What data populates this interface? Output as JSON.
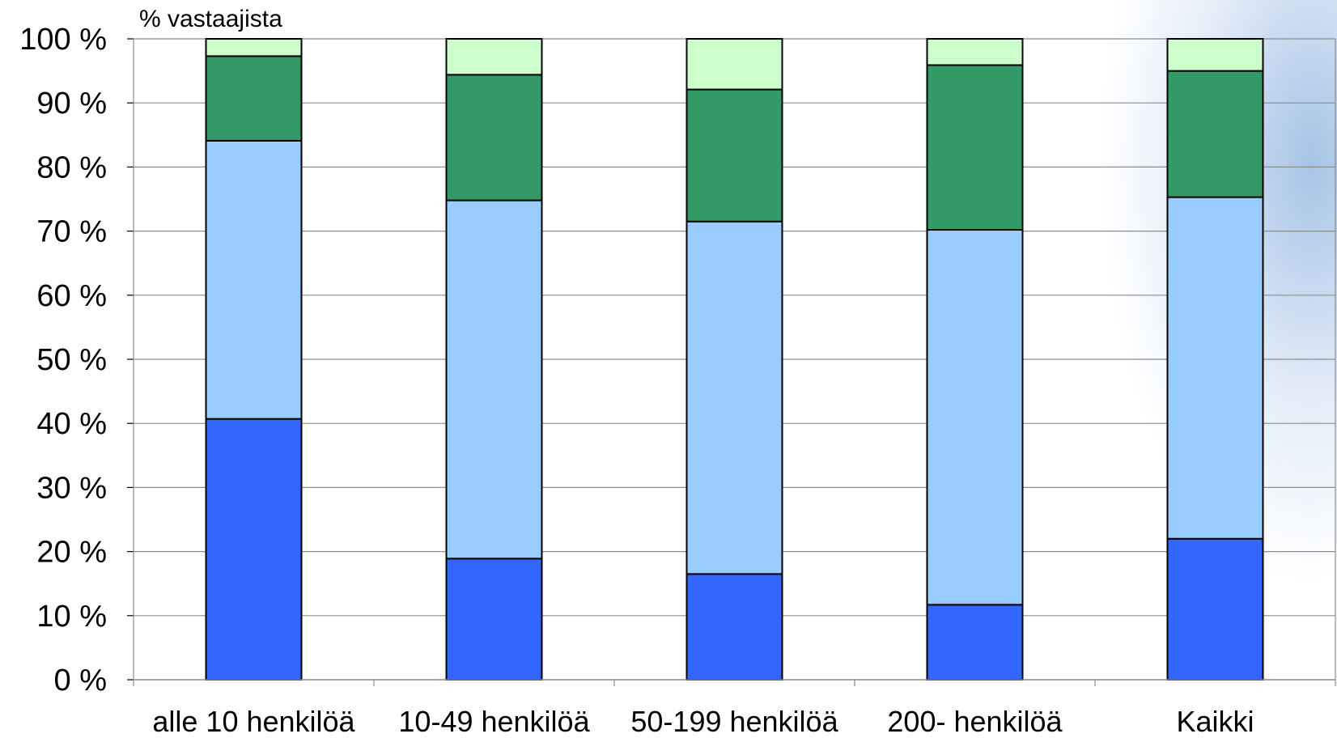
{
  "chart_data": {
    "type": "bar",
    "stacked": true,
    "ylabel": "% vastaajista",
    "ylim": [
      0,
      100
    ],
    "yticks": [
      "0 %",
      "10 %",
      "20 %",
      "30 %",
      "40 %",
      "50 %",
      "60 %",
      "70 %",
      "80 %",
      "90 %",
      "100 %"
    ],
    "categories": [
      "alle 10 henkilöä",
      "10-49 henkilöä",
      "50-199 henkilöä",
      "200- henkilöä",
      "Kaikki"
    ],
    "grid": true,
    "series": [
      {
        "color": "#3366ff",
        "values": [
          40.7,
          18.9,
          16.5,
          11.7,
          22.0
        ]
      },
      {
        "color": "#99ccff",
        "values": [
          43.4,
          55.9,
          55.0,
          58.5,
          53.3
        ]
      },
      {
        "color": "#339966",
        "values": [
          13.2,
          19.6,
          20.6,
          25.7,
          19.7
        ]
      },
      {
        "color": "#ccffcc",
        "values": [
          2.7,
          5.6,
          7.9,
          4.1,
          5.0
        ]
      }
    ]
  }
}
